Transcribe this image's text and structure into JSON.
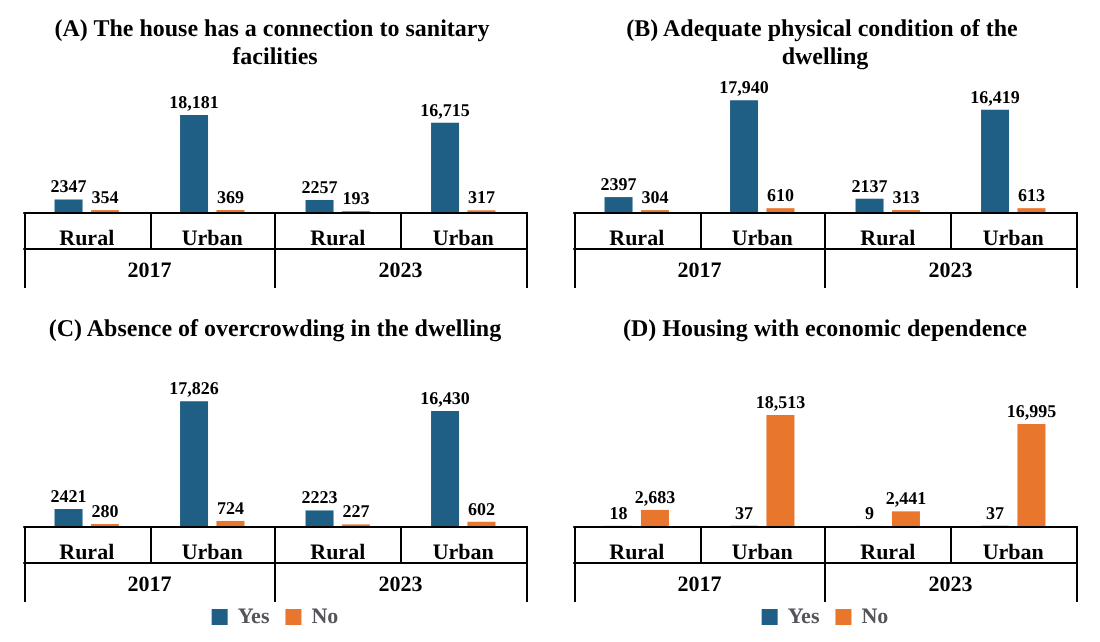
{
  "chart_data": [
    {
      "type": "bar",
      "title": "(A) The house has a connection to sanitary facilities",
      "categories": [
        "Rural",
        "Urban",
        "Rural",
        "Urban"
      ],
      "annotations": [
        "2017",
        "2023"
      ],
      "series": [
        {
          "color": "#1f5f85",
          "values": [
            2347,
            18181,
            2257,
            16715
          ],
          "value_labels": [
            "2347",
            "18,181",
            "2257",
            "16,715"
          ]
        },
        {
          "color": "#e8762d",
          "values": [
            354,
            369,
            193,
            317
          ],
          "value_labels": [
            "354",
            "369",
            "193",
            "317"
          ]
        }
      ]
    },
    {
      "type": "bar",
      "title": "(B) Adequate physical condition of the dwelling",
      "categories": [
        "Rural",
        "Urban",
        "Rural",
        "Urban"
      ],
      "annotations": [
        "2017",
        "2023"
      ],
      "series": [
        {
          "color": "#1f5f85",
          "values": [
            2397,
            17940,
            2137,
            16419
          ],
          "value_labels": [
            "2397",
            "17,940",
            "2137",
            "16,419"
          ]
        },
        {
          "color": "#e8762d",
          "values": [
            304,
            610,
            313,
            613
          ],
          "value_labels": [
            "304",
            "610",
            "313",
            "613"
          ]
        }
      ]
    },
    {
      "type": "bar",
      "title": "(C) Absence of overcrowding in the dwelling",
      "categories": [
        "Rural",
        "Urban",
        "Rural",
        "Urban"
      ],
      "annotations": [
        "2017",
        "2023"
      ],
      "legend": "bottom",
      "series": [
        {
          "name": "Yes",
          "color": "#1f5f85",
          "values": [
            2421,
            17826,
            2223,
            16430
          ],
          "value_labels": [
            "2421",
            "17,826",
            "2223",
            "16,430"
          ]
        },
        {
          "name": "No",
          "color": "#e8762d",
          "values": [
            280,
            724,
            227,
            602
          ],
          "value_labels": [
            "280",
            "724",
            "227",
            "602"
          ]
        }
      ]
    },
    {
      "type": "bar",
      "title": "(D) Housing with economic dependence",
      "categories": [
        "Rural",
        "Urban",
        "Rural",
        "Urban"
      ],
      "annotations": [
        "2017",
        "2023"
      ],
      "legend": "bottom",
      "series": [
        {
          "name": "Yes",
          "color": "#1f5f85",
          "values": [
            18,
            37,
            9,
            37
          ],
          "value_labels": [
            "18",
            "37",
            "9",
            "37"
          ]
        },
        {
          "name": "No",
          "color": "#e8762d",
          "values": [
            2683,
            18513,
            2441,
            16995
          ],
          "value_labels": [
            "2,683",
            "18,513",
            "2,441",
            "16,995"
          ]
        }
      ]
    }
  ]
}
